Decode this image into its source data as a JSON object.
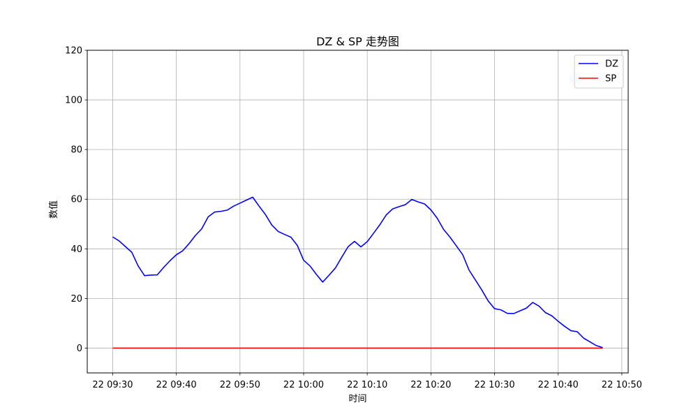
{
  "chart_data": {
    "type": "line",
    "title": "DZ & SP 走势图",
    "xlabel": "时间",
    "ylabel": "数值",
    "ylim": [
      -10,
      120
    ],
    "xlim": [
      "22 09:26",
      "22 10:51"
    ],
    "y_ticks": [
      0,
      20,
      40,
      60,
      80,
      100,
      120
    ],
    "x_ticks": [
      "22 09:30",
      "22 09:40",
      "22 09:50",
      "22 10:00",
      "22 10:10",
      "22 10:20",
      "22 10:30",
      "22 10:40",
      "22 10:50"
    ],
    "grid": true,
    "legend_position": "top-right",
    "series": [
      {
        "name": "DZ",
        "color": "#0000ff",
        "x": [
          "22 09:30",
          "22 09:31",
          "22 09:32",
          "22 09:33",
          "22 09:34",
          "22 09:35",
          "22 09:36",
          "22 09:37",
          "22 09:38",
          "22 09:39",
          "22 09:40",
          "22 09:41",
          "22 09:42",
          "22 09:43",
          "22 09:44",
          "22 09:45",
          "22 09:46",
          "22 09:47",
          "22 09:48",
          "22 09:49",
          "22 09:50",
          "22 09:51",
          "22 09:52",
          "22 09:53",
          "22 09:54",
          "22 09:55",
          "22 09:56",
          "22 09:57",
          "22 09:58",
          "22 09:59",
          "22 10:00",
          "22 10:01",
          "22 10:02",
          "22 10:03",
          "22 10:04",
          "22 10:05",
          "22 10:06",
          "22 10:07",
          "22 10:08",
          "22 10:09",
          "22 10:10",
          "22 10:11",
          "22 10:12",
          "22 10:13",
          "22 10:14",
          "22 10:15",
          "22 10:16",
          "22 10:17",
          "22 10:18",
          "22 10:19",
          "22 10:20",
          "22 10:21",
          "22 10:22",
          "22 10:23",
          "22 10:24",
          "22 10:25",
          "22 10:26",
          "22 10:27",
          "22 10:28",
          "22 10:29",
          "22 10:30",
          "22 10:31",
          "22 10:32",
          "22 10:33",
          "22 10:34",
          "22 10:35",
          "22 10:36",
          "22 10:37",
          "22 10:38",
          "22 10:39",
          "22 10:40",
          "22 10:41",
          "22 10:42",
          "22 10:43",
          "22 10:44",
          "22 10:45",
          "22 10:46",
          "22 10:47"
        ],
        "values": [
          44.8,
          43.2,
          40.9,
          38.6,
          33.1,
          29.2,
          29.4,
          29.5,
          32.5,
          35.2,
          37.6,
          39.2,
          42.1,
          45.4,
          48.1,
          52.9,
          54.8,
          55.1,
          55.6,
          57.2,
          58.4,
          59.6,
          60.8,
          57.2,
          53.8,
          49.6,
          47.0,
          45.8,
          44.7,
          41.4,
          35.4,
          33.1,
          29.7,
          26.6,
          29.4,
          32.3,
          36.7,
          40.9,
          43.0,
          40.8,
          42.9,
          46.3,
          49.8,
          53.7,
          56.1,
          57.0,
          57.8,
          59.9,
          58.9,
          58.1,
          55.7,
          52.3,
          47.8,
          44.7,
          41.2,
          37.6,
          31.4,
          27.4,
          23.4,
          19.0,
          15.9,
          15.4,
          14.0,
          13.9,
          15.0,
          16.1,
          18.4,
          16.9,
          14.3,
          13.0,
          10.8,
          8.8,
          7.0,
          6.6,
          4.0,
          2.5,
          1.0,
          0.2
        ]
      },
      {
        "name": "SP",
        "color": "#ff0000",
        "x": [
          "22 09:30",
          "22 10:47"
        ],
        "values": [
          0,
          0
        ]
      }
    ]
  }
}
